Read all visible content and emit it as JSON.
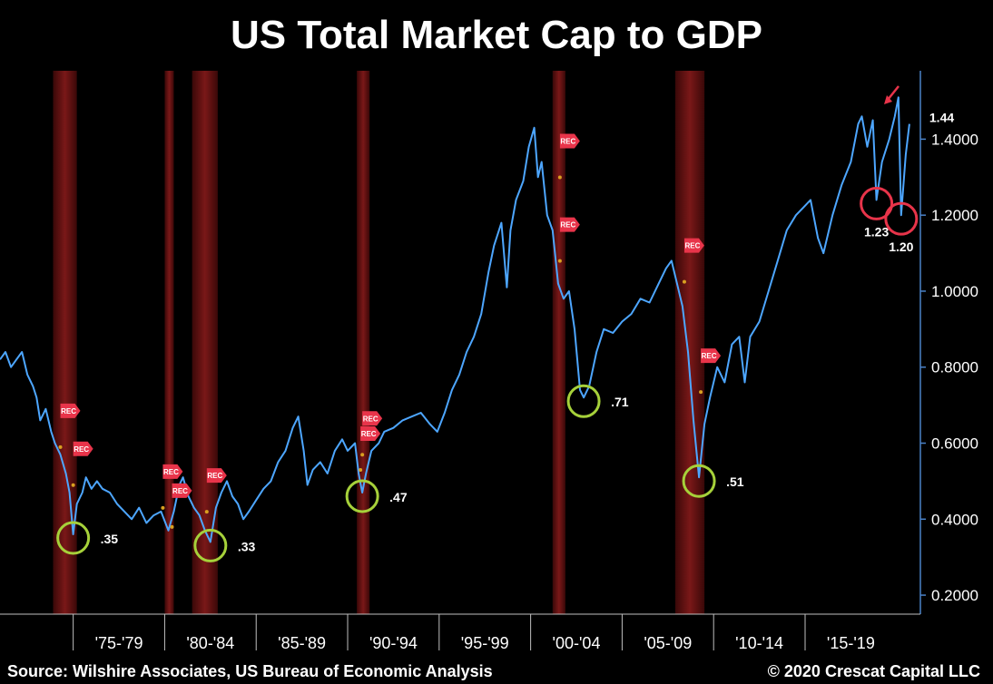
{
  "title": "US Total Market Cap to GDP",
  "footer": {
    "source": "Source: Wilshire Associates, US Bureau of Economic Analysis",
    "copyright": "© 2020 Crescat Capital LLC"
  },
  "colors": {
    "line": "#4da6ff",
    "recession": "#6b1414",
    "trough_circle": "#a6d13a",
    "recent_circle": "#e8344a",
    "rec_flag": "#e8344a",
    "axis": "#4a82c8"
  },
  "chart_data": {
    "type": "line",
    "title": "US Total Market Cap to GDP",
    "xlabel": "",
    "ylabel": "",
    "x_range": [
      1971.0,
      2021.3
    ],
    "ylim": [
      0.15,
      1.58
    ],
    "y_ticks": [
      0.2,
      0.4,
      0.6,
      0.8,
      1.0,
      1.2,
      1.4
    ],
    "y_tick_labels": [
      "0.2000",
      "0.4000",
      "0.6000",
      "0.8000",
      "1.0000",
      "1.2000",
      "1.4000"
    ],
    "x_period_labels": [
      {
        "label": "'75-'79",
        "start": 1975,
        "end": 1980
      },
      {
        "label": "'80-'84",
        "start": 1980,
        "end": 1985
      },
      {
        "label": "'85-'89",
        "start": 1985,
        "end": 1990
      },
      {
        "label": "'90-'94",
        "start": 1990,
        "end": 1995
      },
      {
        "label": "'95-'99",
        "start": 1995,
        "end": 2000
      },
      {
        "label": "'00-'04",
        "start": 2000,
        "end": 2005
      },
      {
        "label": "'05-'09",
        "start": 2005,
        "end": 2010
      },
      {
        "label": "'10-'14",
        "start": 2010,
        "end": 2015
      },
      {
        "label": "'15-'19",
        "start": 2015,
        "end": 2020
      }
    ],
    "recessions": [
      {
        "start": 1973.9,
        "end": 1975.2
      },
      {
        "start": 1980.0,
        "end": 1980.5
      },
      {
        "start": 1981.5,
        "end": 1982.9
      },
      {
        "start": 1990.5,
        "end": 1991.2
      },
      {
        "start": 2001.2,
        "end": 2001.9
      },
      {
        "start": 2007.9,
        "end": 2009.5
      }
    ],
    "rec_flag_label": "REC",
    "rec_flags": [
      {
        "x": 1974.3,
        "y": 0.685
      },
      {
        "x": 1975.0,
        "y": 0.585
      },
      {
        "x": 1979.9,
        "y": 0.525
      },
      {
        "x": 1980.4,
        "y": 0.475
      },
      {
        "x": 1982.3,
        "y": 0.515
      },
      {
        "x": 1990.8,
        "y": 0.665
      },
      {
        "x": 1990.7,
        "y": 0.625
      },
      {
        "x": 2001.6,
        "y": 1.395
      },
      {
        "x": 2001.6,
        "y": 1.175
      },
      {
        "x": 2008.4,
        "y": 1.12
      },
      {
        "x": 2009.3,
        "y": 0.83
      }
    ],
    "series": [
      {
        "values": [
          [
            1971.0,
            0.82
          ],
          [
            1971.3,
            0.84
          ],
          [
            1971.6,
            0.8
          ],
          [
            1971.9,
            0.82
          ],
          [
            1972.2,
            0.84
          ],
          [
            1972.5,
            0.78
          ],
          [
            1972.8,
            0.75
          ],
          [
            1973.0,
            0.72
          ],
          [
            1973.2,
            0.66
          ],
          [
            1973.5,
            0.69
          ],
          [
            1973.8,
            0.63
          ],
          [
            1974.0,
            0.6
          ],
          [
            1974.3,
            0.57
          ],
          [
            1974.6,
            0.52
          ],
          [
            1974.8,
            0.47
          ],
          [
            1975.0,
            0.36
          ],
          [
            1975.2,
            0.44
          ],
          [
            1975.5,
            0.47
          ],
          [
            1975.7,
            0.51
          ],
          [
            1976.0,
            0.48
          ],
          [
            1976.3,
            0.5
          ],
          [
            1976.6,
            0.48
          ],
          [
            1977.0,
            0.47
          ],
          [
            1977.4,
            0.44
          ],
          [
            1977.8,
            0.42
          ],
          [
            1978.2,
            0.4
          ],
          [
            1978.6,
            0.43
          ],
          [
            1979.0,
            0.39
          ],
          [
            1979.4,
            0.41
          ],
          [
            1979.8,
            0.42
          ],
          [
            1980.2,
            0.37
          ],
          [
            1980.5,
            0.42
          ],
          [
            1980.8,
            0.49
          ],
          [
            1981.0,
            0.51
          ],
          [
            1981.3,
            0.46
          ],
          [
            1981.6,
            0.43
          ],
          [
            1981.9,
            0.41
          ],
          [
            1982.2,
            0.37
          ],
          [
            1982.5,
            0.34
          ],
          [
            1982.8,
            0.43
          ],
          [
            1983.1,
            0.47
          ],
          [
            1983.4,
            0.5
          ],
          [
            1983.7,
            0.46
          ],
          [
            1984.0,
            0.44
          ],
          [
            1984.3,
            0.4
          ],
          [
            1984.6,
            0.42
          ],
          [
            1985.0,
            0.45
          ],
          [
            1985.4,
            0.48
          ],
          [
            1985.8,
            0.5
          ],
          [
            1986.2,
            0.55
          ],
          [
            1986.6,
            0.58
          ],
          [
            1987.0,
            0.64
          ],
          [
            1987.3,
            0.67
          ],
          [
            1987.6,
            0.58
          ],
          [
            1987.8,
            0.49
          ],
          [
            1988.1,
            0.53
          ],
          [
            1988.5,
            0.55
          ],
          [
            1988.9,
            0.52
          ],
          [
            1989.3,
            0.58
          ],
          [
            1989.7,
            0.61
          ],
          [
            1990.0,
            0.58
          ],
          [
            1990.4,
            0.6
          ],
          [
            1990.6,
            0.52
          ],
          [
            1990.8,
            0.47
          ],
          [
            1991.0,
            0.52
          ],
          [
            1991.3,
            0.58
          ],
          [
            1991.7,
            0.6
          ],
          [
            1992.0,
            0.63
          ],
          [
            1992.5,
            0.64
          ],
          [
            1993.0,
            0.66
          ],
          [
            1993.5,
            0.67
          ],
          [
            1994.0,
            0.68
          ],
          [
            1994.5,
            0.65
          ],
          [
            1994.9,
            0.63
          ],
          [
            1995.3,
            0.68
          ],
          [
            1995.7,
            0.74
          ],
          [
            1996.1,
            0.78
          ],
          [
            1996.5,
            0.84
          ],
          [
            1996.9,
            0.88
          ],
          [
            1997.3,
            0.94
          ],
          [
            1997.7,
            1.05
          ],
          [
            1998.0,
            1.12
          ],
          [
            1998.4,
            1.18
          ],
          [
            1998.7,
            1.01
          ],
          [
            1998.9,
            1.16
          ],
          [
            1999.2,
            1.24
          ],
          [
            1999.6,
            1.29
          ],
          [
            1999.9,
            1.38
          ],
          [
            2000.2,
            1.43
          ],
          [
            2000.4,
            1.3
          ],
          [
            2000.6,
            1.34
          ],
          [
            2000.9,
            1.2
          ],
          [
            2001.2,
            1.16
          ],
          [
            2001.5,
            1.02
          ],
          [
            2001.8,
            0.98
          ],
          [
            2002.1,
            1.0
          ],
          [
            2002.4,
            0.9
          ],
          [
            2002.7,
            0.74
          ],
          [
            2002.9,
            0.72
          ],
          [
            2003.2,
            0.75
          ],
          [
            2003.6,
            0.84
          ],
          [
            2004.0,
            0.9
          ],
          [
            2004.5,
            0.89
          ],
          [
            2005.0,
            0.92
          ],
          [
            2005.5,
            0.94
          ],
          [
            2006.0,
            0.98
          ],
          [
            2006.5,
            0.97
          ],
          [
            2007.0,
            1.02
          ],
          [
            2007.4,
            1.06
          ],
          [
            2007.7,
            1.08
          ],
          [
            2008.0,
            1.02
          ],
          [
            2008.3,
            0.96
          ],
          [
            2008.6,
            0.84
          ],
          [
            2008.9,
            0.66
          ],
          [
            2009.2,
            0.51
          ],
          [
            2009.5,
            0.65
          ],
          [
            2009.8,
            0.72
          ],
          [
            2010.2,
            0.8
          ],
          [
            2010.6,
            0.76
          ],
          [
            2011.0,
            0.86
          ],
          [
            2011.4,
            0.88
          ],
          [
            2011.7,
            0.76
          ],
          [
            2012.0,
            0.88
          ],
          [
            2012.5,
            0.92
          ],
          [
            2013.0,
            1.0
          ],
          [
            2013.5,
            1.08
          ],
          [
            2014.0,
            1.16
          ],
          [
            2014.5,
            1.2
          ],
          [
            2014.9,
            1.22
          ],
          [
            2015.3,
            1.24
          ],
          [
            2015.7,
            1.14
          ],
          [
            2016.0,
            1.1
          ],
          [
            2016.5,
            1.2
          ],
          [
            2017.0,
            1.28
          ],
          [
            2017.5,
            1.34
          ],
          [
            2017.9,
            1.44
          ],
          [
            2018.1,
            1.46
          ],
          [
            2018.4,
            1.38
          ],
          [
            2018.7,
            1.45
          ],
          [
            2018.9,
            1.24
          ],
          [
            2019.2,
            1.34
          ],
          [
            2019.6,
            1.4
          ],
          [
            2019.9,
            1.46
          ],
          [
            2020.1,
            1.51
          ],
          [
            2020.25,
            1.2
          ],
          [
            2020.5,
            1.36
          ],
          [
            2020.7,
            1.44
          ]
        ]
      }
    ],
    "annotations": [
      {
        "text": ".35",
        "x": 1975.0,
        "y": 0.36,
        "circle": "trough"
      },
      {
        "text": ".33",
        "x": 1982.5,
        "y": 0.34,
        "circle": "trough"
      },
      {
        "text": ".47",
        "x": 1990.8,
        "y": 0.47,
        "circle": "trough"
      },
      {
        "text": ".71",
        "x": 2002.9,
        "y": 0.72,
        "circle": "trough"
      },
      {
        "text": ".51",
        "x": 2009.2,
        "y": 0.51,
        "circle": "trough"
      },
      {
        "text": "1.23",
        "x": 2018.9,
        "y": 1.24,
        "circle": "recent"
      },
      {
        "text": "1.20",
        "x": 2020.25,
        "y": 1.2,
        "circle": "recent"
      },
      {
        "text": "1.44",
        "x": 2020.7,
        "y": 1.44,
        "circle": "none"
      }
    ]
  }
}
